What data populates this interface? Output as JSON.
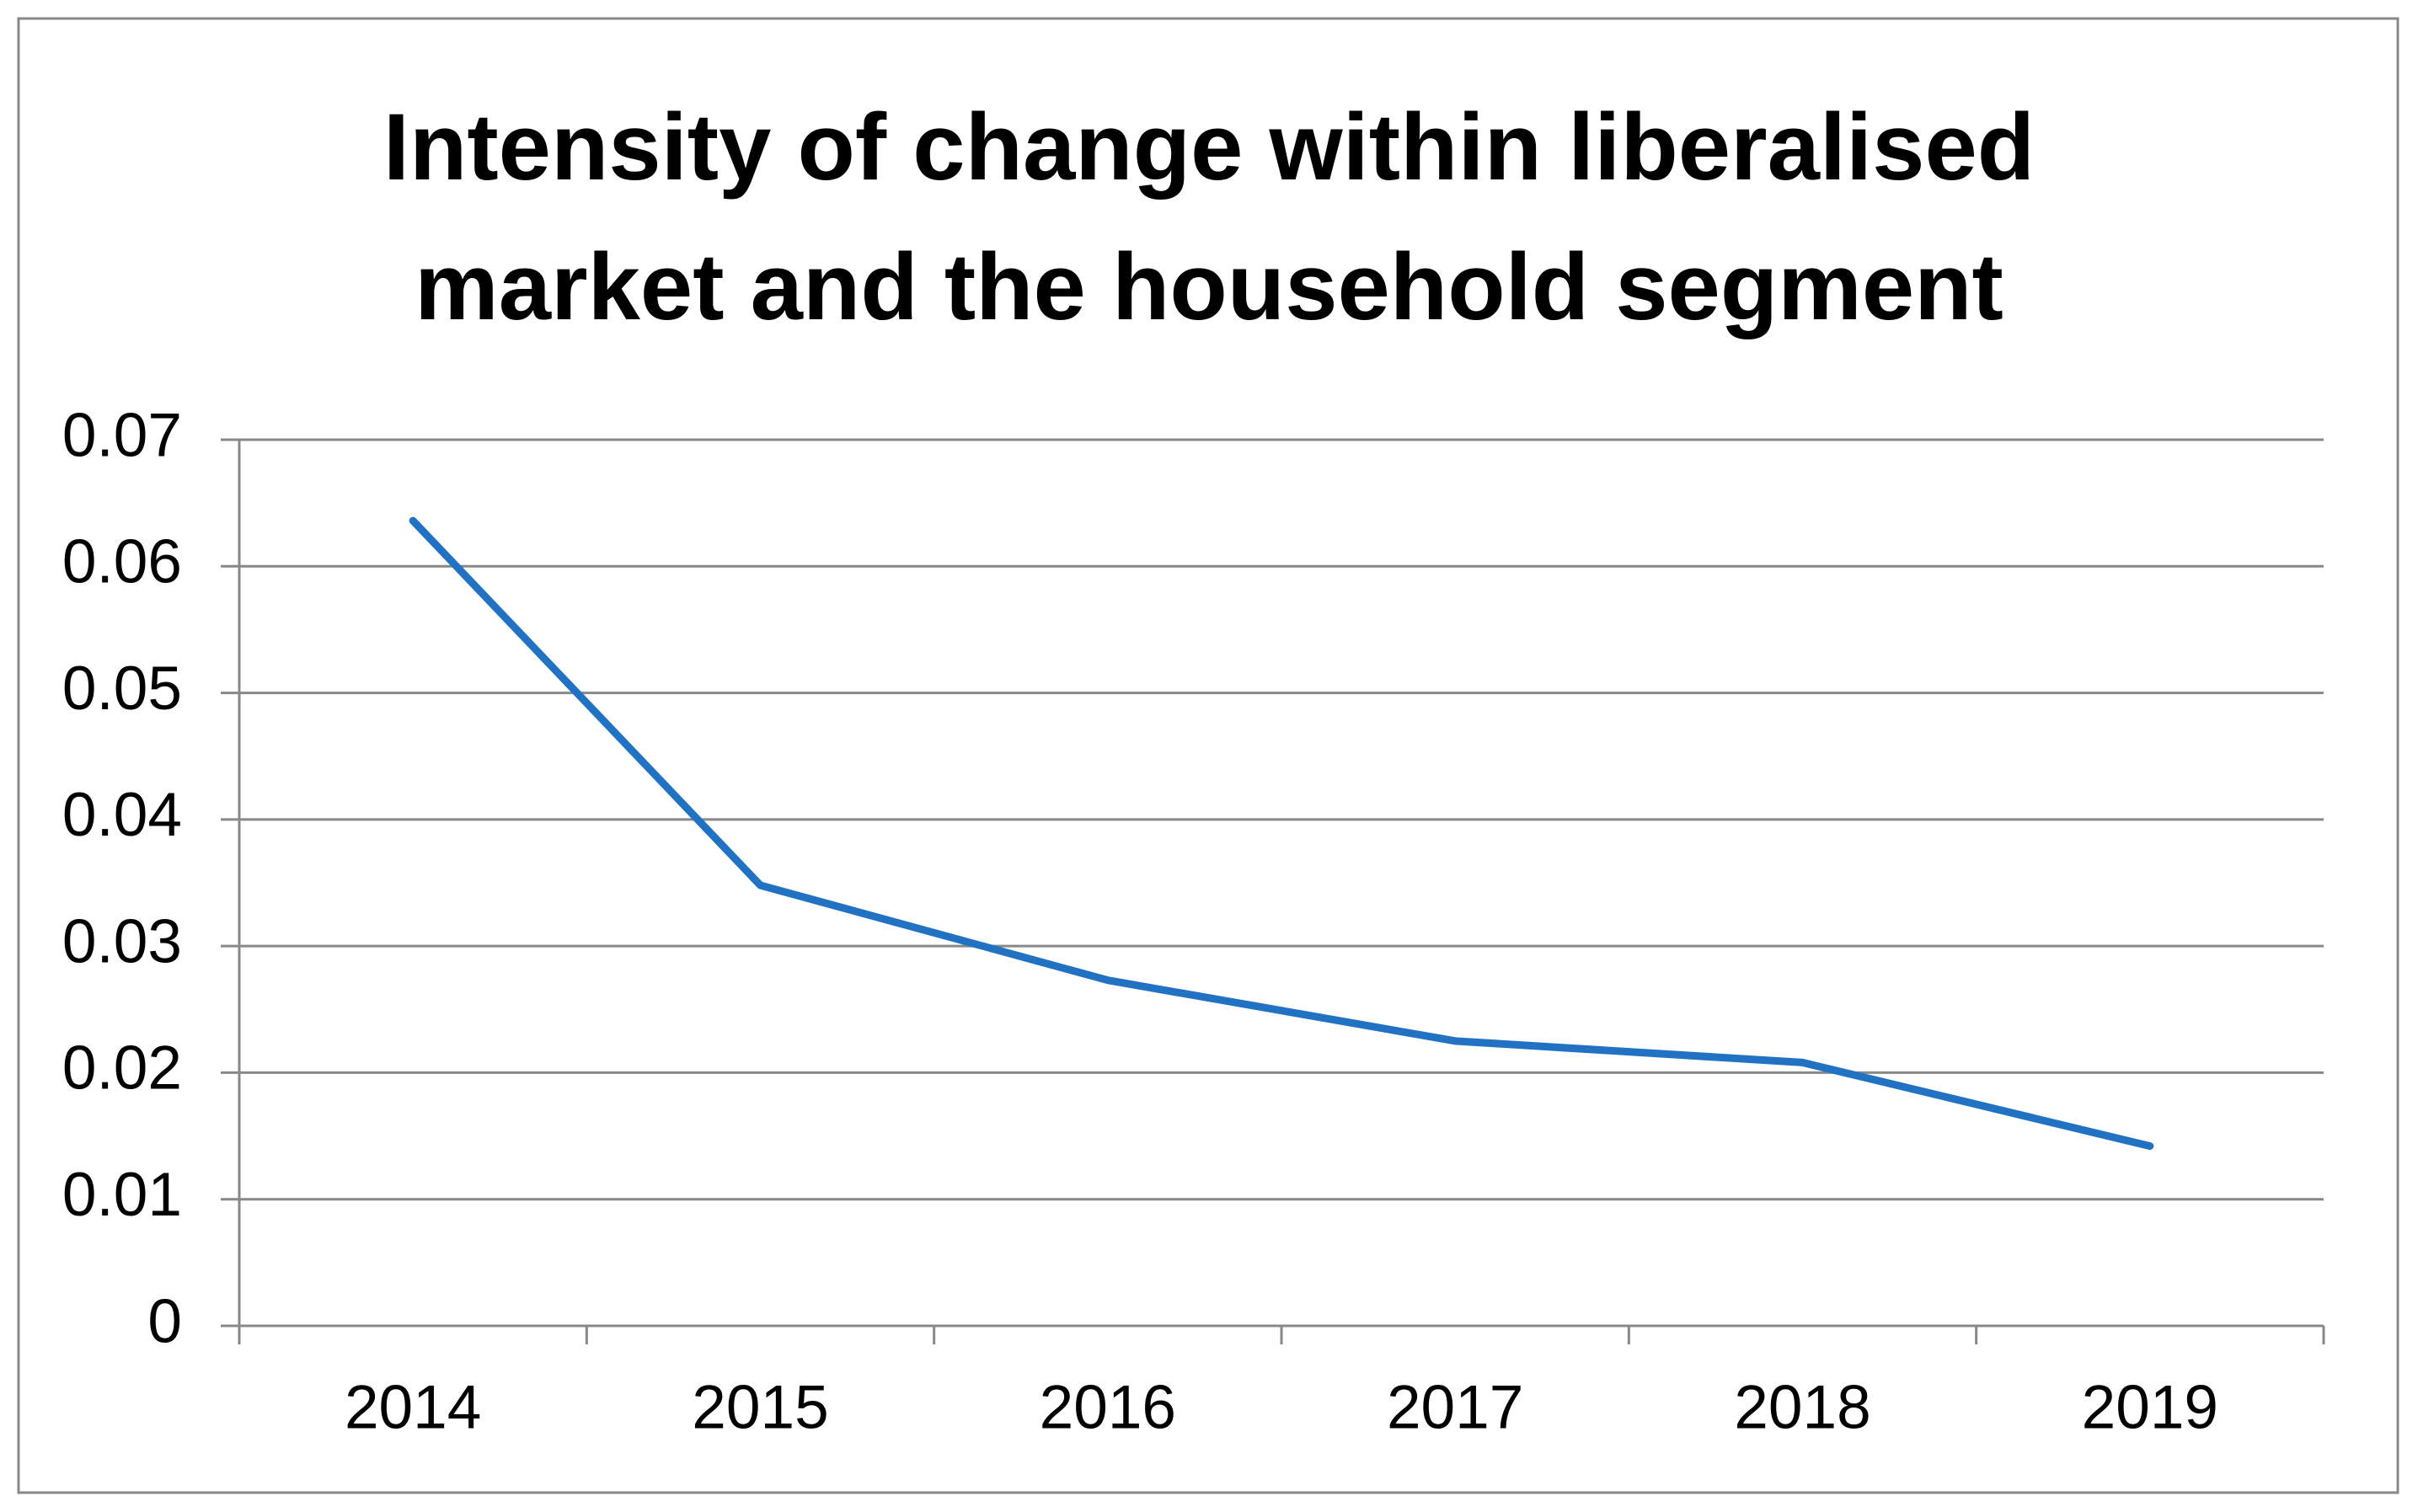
{
  "chart_data": {
    "type": "line",
    "title": "Intensity of change within liberalised market and the household segment",
    "categories": [
      "2014",
      "2015",
      "2016",
      "2017",
      "2018",
      "2019"
    ],
    "series": [
      {
        "color": "#2272c3",
        "values": [
          0.0636,
          0.0348,
          0.0273,
          0.0225,
          0.0208,
          0.0142
        ]
      }
    ],
    "ylim": [
      0,
      0.07
    ],
    "yticks": [
      0,
      0.01,
      0.02,
      0.03,
      0.04,
      0.05,
      0.06,
      0.07
    ],
    "grid": true
  }
}
